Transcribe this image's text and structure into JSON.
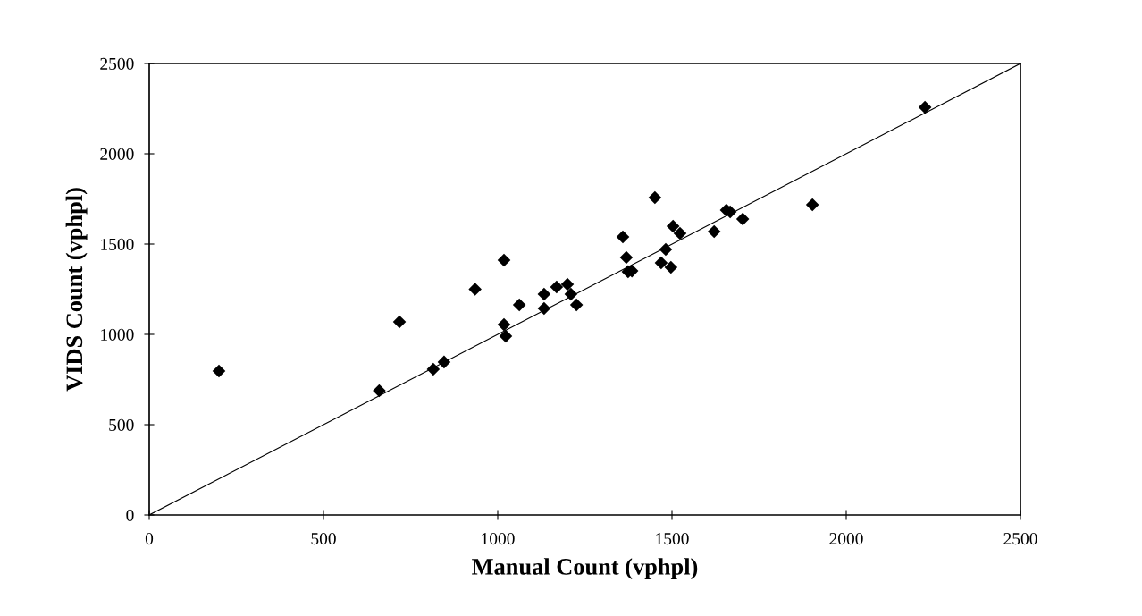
{
  "chart_data": {
    "type": "scatter",
    "xlabel": "Manual Count (vphpl)",
    "ylabel": "VIDS Count (vphpl)",
    "xlim": [
      0,
      2500
    ],
    "ylim": [
      0,
      2500
    ],
    "xticks": [
      0,
      500,
      1000,
      1500,
      2000,
      2500
    ],
    "yticks": [
      0,
      500,
      1000,
      1500,
      2000,
      2500
    ],
    "grid": false,
    "series": [
      {
        "marker": "diamond",
        "color": "#000000",
        "x": [
          200,
          660,
          718,
          815,
          846,
          935,
          1018,
          1018,
          1023,
          1062,
          1133,
          1133,
          1169,
          1200,
          1210,
          1226,
          1359,
          1369,
          1374,
          1385,
          1451,
          1469,
          1482,
          1497,
          1503,
          1523,
          1621,
          1656,
          1667,
          1703,
          1903,
          2226
        ],
        "values": [
          797,
          688,
          1069,
          807,
          847,
          1250,
          1411,
          1054,
          990,
          1163,
          1223,
          1144,
          1262,
          1277,
          1223,
          1163,
          1540,
          1426,
          1347,
          1351,
          1757,
          1396,
          1470,
          1371,
          1599,
          1559,
          1569,
          1688,
          1678,
          1639,
          1718,
          2257
        ]
      },
      {
        "type": "line",
        "color": "#000000",
        "x": [
          0,
          2500
        ],
        "values": [
          0,
          2500
        ],
        "line_style": "solid"
      }
    ]
  }
}
